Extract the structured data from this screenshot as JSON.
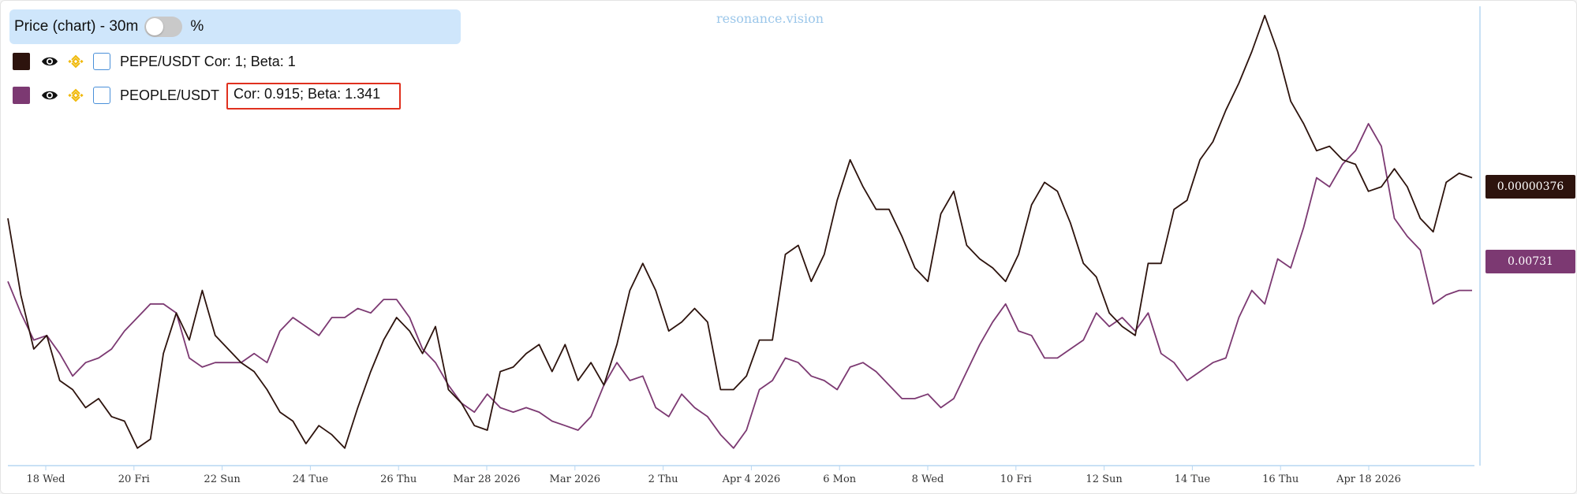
{
  "watermark": "resonance.vision",
  "header": {
    "title": "Price (chart) - 30m",
    "percent_label": "%"
  },
  "legend": [
    {
      "symbol": "PEPE/USDT",
      "stats": "Cor: 1; Beta: 1",
      "color": "#2d130d"
    },
    {
      "symbol": "PEOPLE/USDT",
      "stats": "Cor: 0.915; Beta: 1.341",
      "color": "#7c3972"
    }
  ],
  "icons": {
    "visibility": "eye-icon",
    "exchange": "binance-icon",
    "select": "checkbox"
  },
  "colors": {
    "highlight": "#e0301e",
    "axis": "#b7d7f2",
    "header_bg": "#cfe6fb"
  },
  "price_tags": {
    "pepe": "0.00000376",
    "people": "0.00731"
  },
  "chart_data": {
    "type": "line",
    "title": "",
    "xlabel": "",
    "ylabel": "",
    "grid": false,
    "legend": "top-left",
    "x_tick_labels": [
      "18 Wed",
      "20 Fri",
      "22 Sun",
      "24 Tue",
      "26 Thu",
      "Mar 28 2026",
      "Mar 2026",
      "2 Thu",
      "Apr 4 2026",
      "6 Mon",
      "8 Wed",
      "10 Fri",
      "12 Sun",
      "14 Tue",
      "16 Thu",
      "Apr 18 2026"
    ],
    "ylim": [
      0,
      100
    ],
    "series": [
      {
        "name": "PEPE/USDT",
        "values": [
          54,
          37,
          25,
          28,
          18,
          16,
          12,
          14,
          10,
          9,
          3,
          5,
          24,
          33,
          27,
          38,
          28,
          25,
          22,
          20,
          16,
          11,
          9,
          4,
          8,
          6,
          3,
          12,
          20,
          27,
          32,
          29,
          24,
          30,
          16,
          13,
          8,
          7,
          20,
          21,
          24,
          26,
          20,
          26,
          18,
          22,
          17,
          26,
          38,
          44,
          38,
          29,
          31,
          34,
          31,
          16,
          16,
          19,
          27,
          27,
          46,
          48,
          40,
          46,
          58,
          67,
          61,
          56,
          56,
          50,
          43,
          40,
          55,
          60,
          48,
          45,
          43,
          40,
          46,
          57,
          62,
          60,
          53,
          44,
          41,
          33,
          30,
          28,
          44,
          44,
          56,
          58,
          67,
          71,
          78,
          84,
          91,
          99,
          91,
          80,
          75,
          69,
          70,
          67,
          66,
          60,
          61,
          65,
          61,
          54,
          51,
          62,
          64,
          63
        ]
      },
      {
        "name": "PEOPLE/USDT",
        "values": [
          40,
          33,
          27,
          28,
          24,
          19,
          22,
          23,
          25,
          29,
          32,
          35,
          35,
          33,
          23,
          21,
          22,
          22,
          22,
          24,
          22,
          29,
          32,
          30,
          28,
          32,
          32,
          34,
          33,
          36,
          36,
          32,
          25,
          22,
          17,
          13,
          11,
          15,
          12,
          11,
          12,
          11,
          9,
          8,
          7,
          10,
          17,
          22,
          18,
          19,
          12,
          10,
          15,
          12,
          10,
          6,
          3,
          7,
          16,
          18,
          23,
          22,
          19,
          18,
          16,
          21,
          22,
          20,
          17,
          14,
          14,
          15,
          12,
          14,
          20,
          26,
          31,
          35,
          29,
          28,
          23,
          23,
          25,
          27,
          33,
          30,
          32,
          29,
          33,
          24,
          22,
          18,
          20,
          22,
          23,
          32,
          38,
          35,
          45,
          43,
          52,
          63,
          61,
          66,
          69,
          75,
          70,
          54,
          50,
          47,
          35,
          37,
          38,
          38
        ]
      }
    ]
  }
}
